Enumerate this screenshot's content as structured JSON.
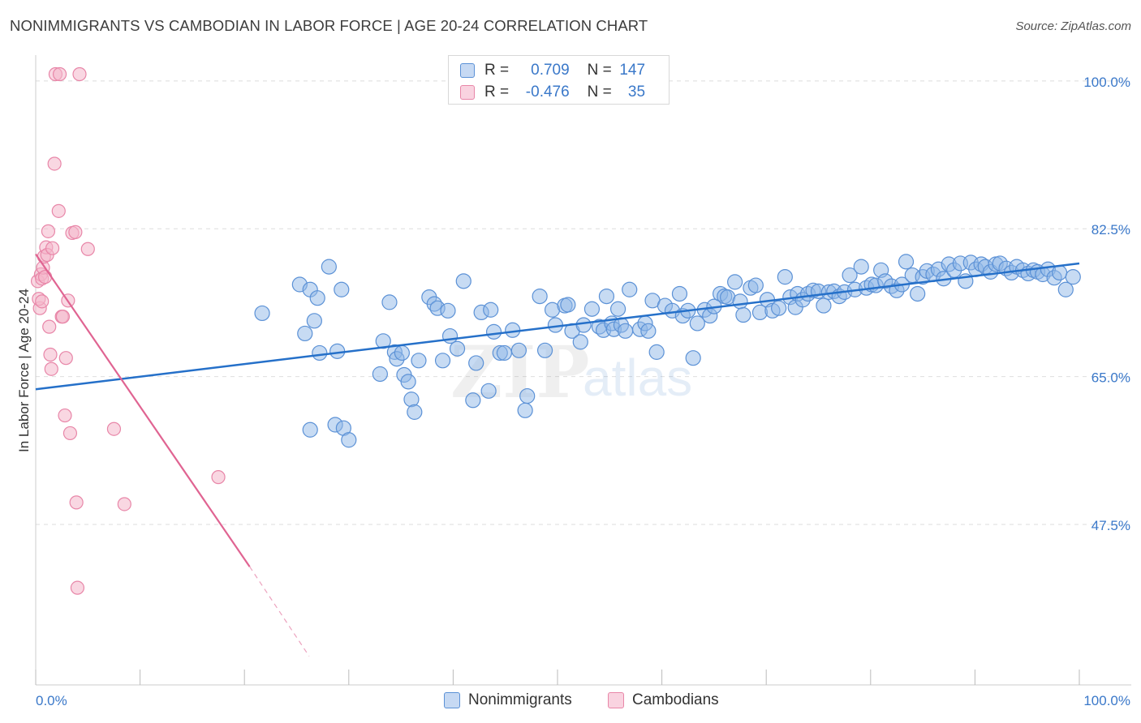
{
  "title": "NONIMMIGRANTS VS CAMBODIAN IN LABOR FORCE | AGE 20-24 CORRELATION CHART",
  "source": "Source: ZipAtlas.com",
  "colors": {
    "blue": "#8fb7e8",
    "blue_stroke": "#5b91d6",
    "blue_line": "#2570c9",
    "pink": "#f4b6cb",
    "pink_stroke": "#e886a8",
    "pink_line": "#e06492",
    "tick_label": "#3a78c9",
    "grid": "#dedede"
  },
  "stats": {
    "r_label": "R =",
    "n_label": "N =",
    "rows": [
      {
        "series": "Nonimmigrants",
        "r": "0.709",
        "n": "147"
      },
      {
        "series": "Cambodians",
        "r": "-0.476",
        "n": "35"
      }
    ]
  },
  "legend": {
    "items": [
      "Nonimmigrants",
      "Cambodians"
    ]
  },
  "chart_data": {
    "type": "scatter",
    "title": "NONIMMIGRANTS VS CAMBODIAN IN LABOR FORCE | AGE 20-24 CORRELATION CHART",
    "xlabel": "",
    "ylabel": "In Labor Force | Age 20-24",
    "xlim": [
      0,
      100
    ],
    "ylim": [
      28.5,
      102
    ],
    "x_tick_labels": [
      "0.0%",
      "100.0%"
    ],
    "y_ticks": [
      47.5,
      65.0,
      82.5,
      100.0
    ],
    "y_tick_labels": [
      "47.5%",
      "65.0%",
      "82.5%",
      "100.0%"
    ],
    "grid": true,
    "legend_position": "bottom",
    "series": [
      {
        "name": "Nonimmigrants",
        "trend": [
          [
            0,
            63.5
          ],
          [
            100,
            78.4
          ]
        ],
        "points": [
          [
            21.7,
            72.5
          ],
          [
            25.3,
            75.9
          ],
          [
            25.8,
            70.1
          ],
          [
            26.3,
            58.7
          ],
          [
            26.3,
            75.3
          ],
          [
            26.7,
            71.6
          ],
          [
            27.0,
            74.3
          ],
          [
            27.2,
            67.8
          ],
          [
            28.1,
            78.0
          ],
          [
            28.7,
            59.3
          ],
          [
            28.9,
            68.0
          ],
          [
            29.3,
            75.3
          ],
          [
            29.5,
            58.9
          ],
          [
            30.0,
            57.5
          ],
          [
            33.0,
            65.3
          ],
          [
            33.3,
            69.2
          ],
          [
            33.9,
            73.8
          ],
          [
            34.4,
            67.9
          ],
          [
            34.6,
            67.1
          ],
          [
            35.1,
            67.8
          ],
          [
            35.3,
            65.2
          ],
          [
            35.7,
            64.4
          ],
          [
            36.0,
            62.3
          ],
          [
            36.3,
            60.8
          ],
          [
            36.7,
            66.9
          ],
          [
            37.7,
            74.4
          ],
          [
            38.2,
            73.6
          ],
          [
            38.5,
            73.1
          ],
          [
            39.0,
            66.9
          ],
          [
            39.5,
            72.8
          ],
          [
            39.7,
            69.8
          ],
          [
            40.4,
            68.3
          ],
          [
            41.0,
            76.3
          ],
          [
            41.9,
            62.2
          ],
          [
            42.2,
            66.6
          ],
          [
            42.7,
            72.6
          ],
          [
            43.4,
            63.3
          ],
          [
            43.6,
            72.9
          ],
          [
            43.9,
            70.3
          ],
          [
            44.5,
            67.8
          ],
          [
            44.9,
            67.8
          ],
          [
            45.7,
            70.5
          ],
          [
            46.3,
            68.1
          ],
          [
            46.9,
            61.0
          ],
          [
            47.1,
            62.7
          ],
          [
            48.3,
            74.5
          ],
          [
            48.8,
            68.1
          ],
          [
            49.5,
            72.9
          ],
          [
            49.8,
            71.1
          ],
          [
            50.7,
            73.4
          ],
          [
            51.0,
            73.5
          ],
          [
            51.4,
            70.4
          ],
          [
            52.2,
            69.1
          ],
          [
            52.5,
            71.1
          ],
          [
            53.3,
            73.0
          ],
          [
            54.0,
            70.9
          ],
          [
            54.4,
            70.5
          ],
          [
            54.7,
            74.5
          ],
          [
            55.2,
            71.3
          ],
          [
            55.4,
            70.6
          ],
          [
            55.8,
            73.0
          ],
          [
            56.1,
            71.1
          ],
          [
            56.5,
            70.4
          ],
          [
            56.9,
            75.3
          ],
          [
            57.9,
            70.6
          ],
          [
            58.4,
            71.3
          ],
          [
            58.7,
            70.4
          ],
          [
            59.1,
            74.0
          ],
          [
            59.5,
            67.9
          ],
          [
            60.3,
            73.4
          ],
          [
            61.0,
            72.8
          ],
          [
            61.7,
            74.8
          ],
          [
            62.0,
            72.2
          ],
          [
            62.5,
            72.8
          ],
          [
            63.0,
            67.2
          ],
          [
            63.4,
            71.3
          ],
          [
            64.1,
            72.9
          ],
          [
            64.6,
            72.2
          ],
          [
            65.0,
            73.3
          ],
          [
            65.6,
            74.8
          ],
          [
            66.0,
            74.5
          ],
          [
            66.3,
            74.4
          ],
          [
            67.0,
            76.2
          ],
          [
            67.5,
            73.9
          ],
          [
            67.8,
            72.3
          ],
          [
            68.5,
            75.5
          ],
          [
            69.0,
            75.8
          ],
          [
            69.4,
            72.6
          ],
          [
            70.1,
            74.1
          ],
          [
            70.6,
            72.8
          ],
          [
            71.2,
            73.1
          ],
          [
            71.8,
            76.8
          ],
          [
            72.3,
            74.4
          ],
          [
            72.8,
            73.2
          ],
          [
            73.0,
            74.8
          ],
          [
            73.5,
            74.1
          ],
          [
            74.0,
            74.8
          ],
          [
            74.5,
            75.2
          ],
          [
            75.0,
            75.1
          ],
          [
            75.5,
            73.4
          ],
          [
            76.0,
            75.0
          ],
          [
            76.5,
            75.1
          ],
          [
            77.0,
            74.5
          ],
          [
            77.5,
            75.0
          ],
          [
            78.0,
            77.0
          ],
          [
            78.5,
            75.3
          ],
          [
            79.1,
            78.0
          ],
          [
            79.6,
            75.5
          ],
          [
            80.1,
            75.9
          ],
          [
            80.5,
            75.8
          ],
          [
            81.0,
            77.6
          ],
          [
            81.4,
            76.3
          ],
          [
            82.0,
            75.7
          ],
          [
            82.5,
            75.2
          ],
          [
            83.0,
            75.9
          ],
          [
            83.4,
            78.6
          ],
          [
            84.0,
            77.0
          ],
          [
            84.5,
            74.8
          ],
          [
            85.0,
            76.8
          ],
          [
            85.4,
            77.5
          ],
          [
            86.0,
            77.1
          ],
          [
            86.5,
            77.7
          ],
          [
            87.0,
            76.6
          ],
          [
            87.5,
            78.3
          ],
          [
            88.0,
            77.6
          ],
          [
            88.6,
            78.4
          ],
          [
            89.1,
            76.3
          ],
          [
            89.6,
            78.5
          ],
          [
            90.1,
            77.7
          ],
          [
            90.6,
            78.3
          ],
          [
            91.0,
            78.0
          ],
          [
            91.5,
            77.4
          ],
          [
            92.0,
            78.3
          ],
          [
            92.4,
            78.4
          ],
          [
            93.0,
            77.8
          ],
          [
            93.5,
            77.3
          ],
          [
            94.0,
            78.0
          ],
          [
            94.6,
            77.6
          ],
          [
            95.1,
            77.2
          ],
          [
            95.6,
            77.6
          ],
          [
            96.0,
            77.4
          ],
          [
            96.5,
            77.1
          ],
          [
            97.0,
            77.7
          ],
          [
            97.6,
            76.7
          ],
          [
            98.1,
            77.3
          ],
          [
            98.7,
            75.3
          ],
          [
            99.4,
            76.8
          ]
        ]
      },
      {
        "name": "Cambodians",
        "trend": [
          [
            0,
            79.5
          ],
          [
            20.5,
            42.5
          ]
        ],
        "trend_dashed_to": [
          26.2,
          31.9
        ],
        "points": [
          [
            0.2,
            76.3
          ],
          [
            0.4,
            73.1
          ],
          [
            0.5,
            77.1
          ],
          [
            0.6,
            76.6
          ],
          [
            0.7,
            77.9
          ],
          [
            0.8,
            79.2
          ],
          [
            0.9,
            76.8
          ],
          [
            1.0,
            80.3
          ],
          [
            1.1,
            79.4
          ],
          [
            1.2,
            82.2
          ],
          [
            1.3,
            70.9
          ],
          [
            1.4,
            67.6
          ],
          [
            1.5,
            65.9
          ],
          [
            1.6,
            80.2
          ],
          [
            1.8,
            90.2
          ],
          [
            1.9,
            100.8
          ],
          [
            2.2,
            84.6
          ],
          [
            2.3,
            100.8
          ],
          [
            2.5,
            72.1
          ],
          [
            2.6,
            72.1
          ],
          [
            2.8,
            60.4
          ],
          [
            2.9,
            67.2
          ],
          [
            3.1,
            74.0
          ],
          [
            3.3,
            58.3
          ],
          [
            3.5,
            82.0
          ],
          [
            3.8,
            82.1
          ],
          [
            3.9,
            50.1
          ],
          [
            4.0,
            40.0
          ],
          [
            4.2,
            100.8
          ],
          [
            5.0,
            80.1
          ],
          [
            7.5,
            58.8
          ],
          [
            8.5,
            49.9
          ],
          [
            17.5,
            53.1
          ],
          [
            0.3,
            74.2
          ],
          [
            0.6,
            73.9
          ]
        ]
      }
    ]
  }
}
